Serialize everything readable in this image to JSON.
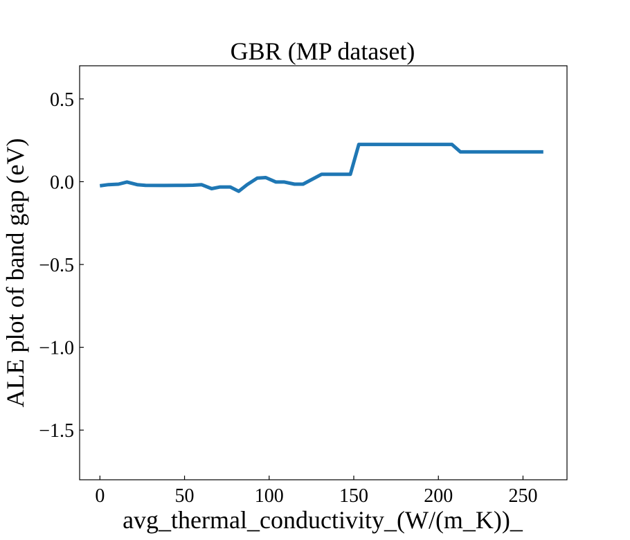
{
  "chart_data": {
    "type": "line",
    "title": "GBR (MP dataset)",
    "xlabel": "avg_thermal_conductivity_(W/(m_K))_",
    "ylabel": "ALE plot of band gap (eV)",
    "xlim": [
      -12,
      276
    ],
    "ylim": [
      -1.8,
      0.7
    ],
    "xticks": [
      0,
      50,
      100,
      150,
      200,
      250
    ],
    "xtick_labels": [
      "0",
      "50",
      "100",
      "150",
      "200",
      "250"
    ],
    "yticks": [
      0.5,
      0.0,
      -0.5,
      -1.0,
      -1.5
    ],
    "ytick_labels": [
      "0.5",
      "0.0",
      "−0.5",
      "−1.0",
      "−1.5"
    ],
    "grid": false,
    "series": [
      {
        "color": "#1f77b4",
        "x": [
          0,
          5,
          11,
          16,
          22,
          27,
          38,
          50,
          55,
          60,
          66,
          71,
          77,
          82,
          87,
          93,
          98,
          104,
          109,
          115,
          120,
          131,
          142,
          148,
          153,
          159,
          164,
          170,
          175,
          181,
          186,
          192,
          197,
          203,
          208,
          213,
          219,
          224,
          230,
          235,
          241,
          246,
          252,
          262
        ],
        "y": [
          -0.025,
          -0.018,
          -0.015,
          -0.002,
          -0.018,
          -0.022,
          -0.023,
          -0.022,
          -0.021,
          -0.018,
          -0.042,
          -0.032,
          -0.032,
          -0.058,
          -0.018,
          0.022,
          0.025,
          -0.002,
          -0.002,
          -0.015,
          -0.015,
          0.045,
          0.045,
          0.045,
          0.225,
          0.225,
          0.225,
          0.225,
          0.225,
          0.225,
          0.225,
          0.225,
          0.225,
          0.225,
          0.225,
          0.18,
          0.18,
          0.18,
          0.18,
          0.18,
          0.18,
          0.18,
          0.18,
          0.18
        ]
      }
    ]
  }
}
